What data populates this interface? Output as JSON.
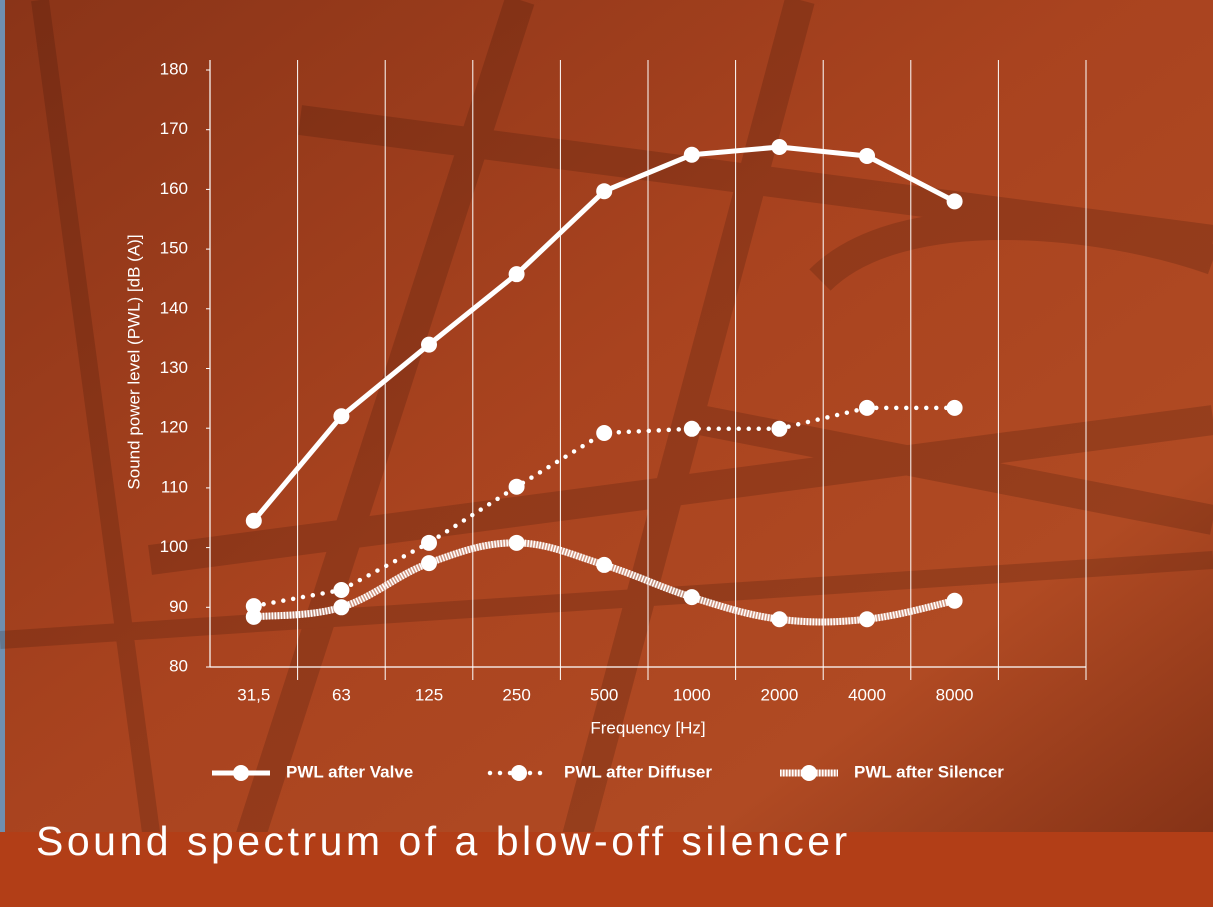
{
  "chart_data": {
    "type": "line",
    "title": "Sound spectrum of a blow-off silencer",
    "x_label": "Frequency [Hz]",
    "y_label": "Sound power level (PWL) [dB (A)]",
    "categories": [
      "31,5",
      "63",
      "125",
      "250",
      "500",
      "1000",
      "2000",
      "4000",
      "8000",
      null
    ],
    "ylim": [
      80,
      180
    ],
    "yticks": [
      80,
      90,
      100,
      110,
      120,
      130,
      140,
      150,
      160,
      170,
      180
    ],
    "grid": false,
    "legend": "bottom",
    "series": [
      {
        "name": "PWL after Valve",
        "color": "#ffffff",
        "style": "solid",
        "values": [
          104.5,
          122,
          134,
          145.8,
          159.7,
          165.8,
          167.1,
          165.6,
          158,
          null
        ]
      },
      {
        "name": "PWL after Diffuser",
        "color": "#ffffff",
        "style": "dotted",
        "values": [
          90.2,
          92.9,
          100.8,
          110.2,
          119.2,
          119.9,
          119.9,
          123.4,
          123.4,
          null
        ]
      },
      {
        "name": "PWL after Silencer",
        "color": "#ffffff",
        "style": "striped",
        "values": [
          88.4,
          90,
          97.4,
          100.8,
          97.1,
          91.7,
          88,
          88,
          91.1,
          null
        ]
      }
    ]
  }
}
